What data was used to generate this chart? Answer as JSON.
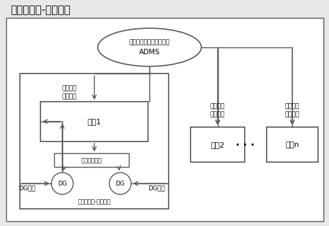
{
  "title": "长时间尺度-全局优化",
  "bg_color": "#e8e8e8",
  "panel_bg": "#ffffff",
  "adms_label1": "主动配电网全局能量管理",
  "adms_label2": "ADMS",
  "zone1_label": "区域1",
  "zone2_label": "区域2",
  "zonen_label": "区域n",
  "dots_label": "· · ·",
  "power_exchange_label": "区域功率\n交换目标",
  "dg_target_left": "DG目标",
  "dg_target_right": "DG目标",
  "dg_label": "DG",
  "auto_control_label": "自治控制策略",
  "short_time_label": "短时间尺度-区域自治",
  "lc": "#555555",
  "tc": "#000000",
  "title_fs": 11,
  "label_fs": 8,
  "small_fs": 6.5,
  "tiny_fs": 6
}
